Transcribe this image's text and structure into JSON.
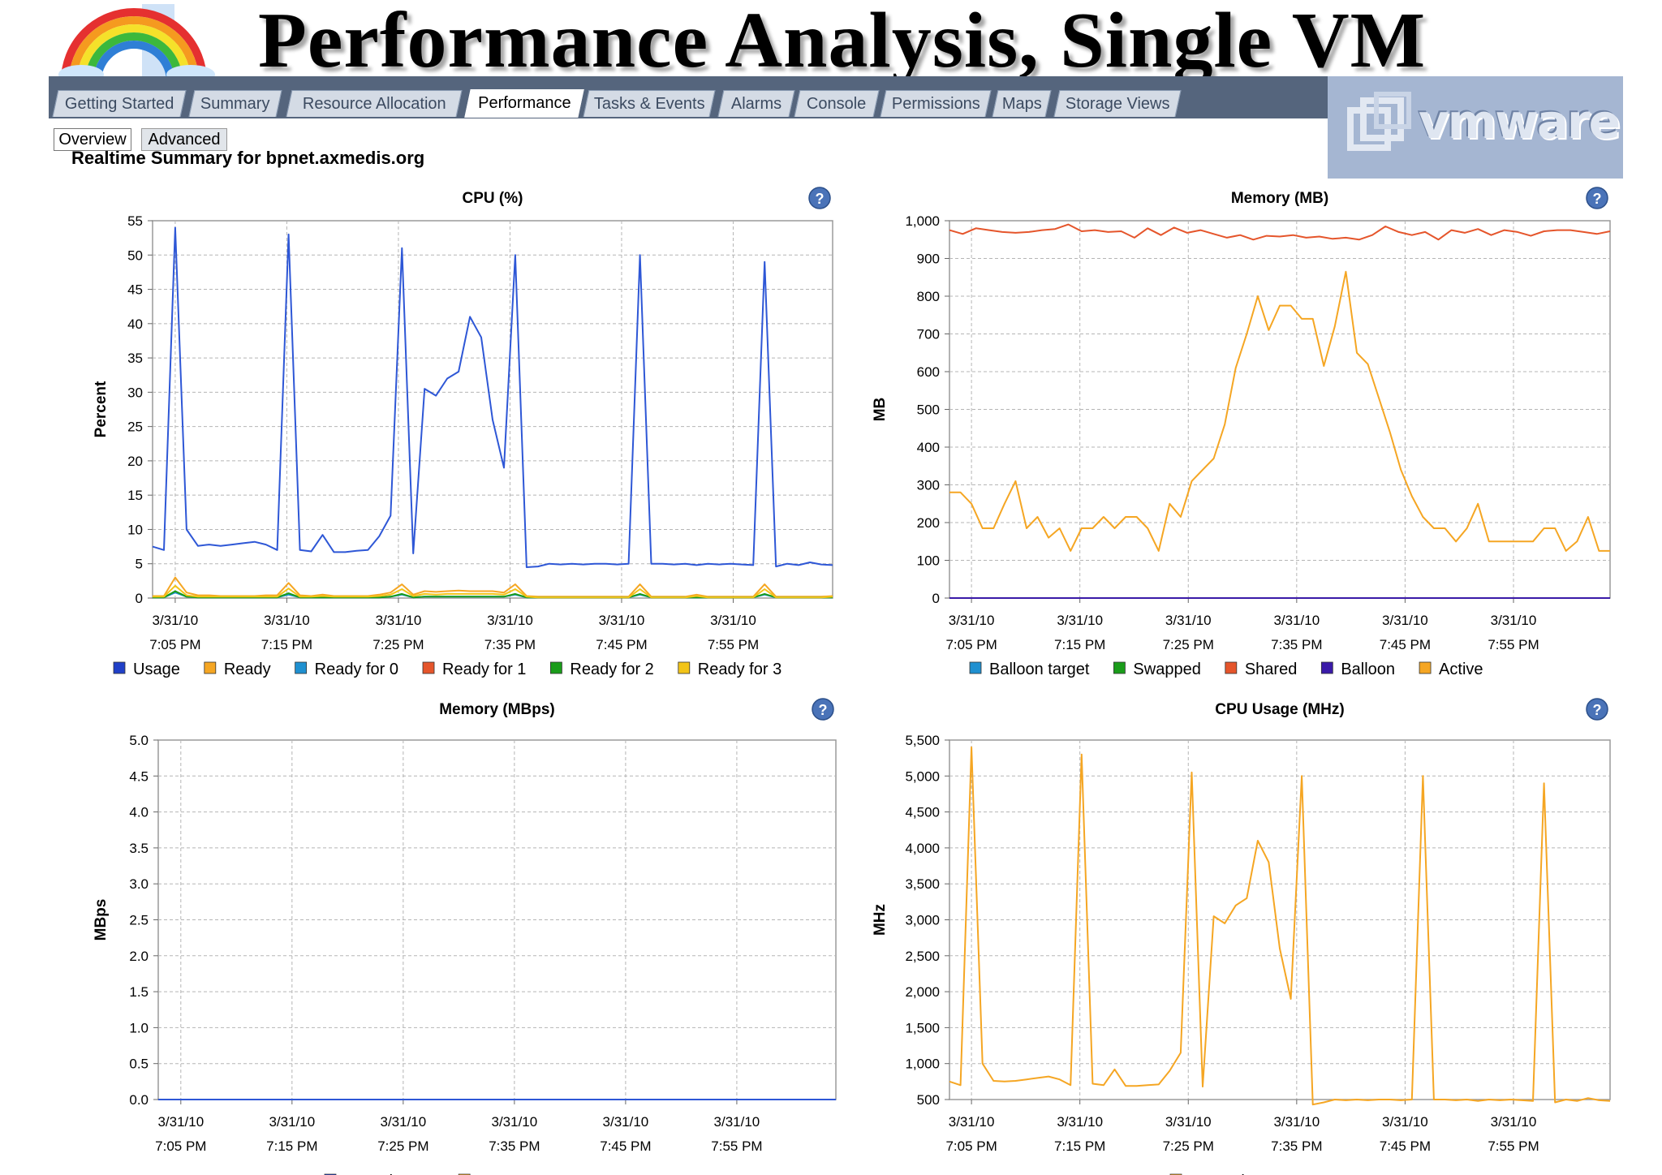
{
  "slide_title": "Performance Analysis, Single VM",
  "tabs": [
    {
      "label": "Getting Started",
      "active": false
    },
    {
      "label": "Summary",
      "active": false
    },
    {
      "label": "Resource Allocation",
      "active": false
    },
    {
      "label": "Performance",
      "active": true
    },
    {
      "label": "Tasks & Events",
      "active": false
    },
    {
      "label": "Alarms",
      "active": false
    },
    {
      "label": "Console",
      "active": false
    },
    {
      "label": "Permissions",
      "active": false
    },
    {
      "label": "Maps",
      "active": false
    },
    {
      "label": "Storage Views",
      "active": false
    }
  ],
  "subtabs": [
    {
      "label": "Overview",
      "selected": true
    },
    {
      "label": "Advanced",
      "selected": false
    }
  ],
  "logo_text": "vmware",
  "summary_title": "Realtime Summary for bpnet.axmedis.org",
  "help_icon": "?",
  "colors": {
    "tabbar": "#55657d",
    "usage_blue": "#2e57d6",
    "orange": "#f5a623",
    "shared_red": "#e5552b",
    "green": "#1a9c1a",
    "yellow": "#f2c418",
    "cyan": "#1f90d0",
    "purple": "#3a1aa8"
  },
  "chart_data": [
    {
      "type": "line",
      "title": "CPU (%)",
      "xlabel": "",
      "ylabel": "Percent",
      "ylim": [
        0,
        55
      ],
      "yticks": [
        "0",
        "5",
        "10",
        "15",
        "20",
        "25",
        "30",
        "35",
        "40",
        "45",
        "50",
        "55"
      ],
      "xticks": [
        [
          "3/31/10",
          "7:05 PM"
        ],
        [
          "3/31/10",
          "7:15 PM"
        ],
        [
          "3/31/10",
          "7:25 PM"
        ],
        [
          "3/31/10",
          "7:35 PM"
        ],
        [
          "3/31/10",
          "7:45 PM"
        ],
        [
          "3/31/10",
          "7:55 PM"
        ]
      ],
      "legend": [
        {
          "name": "Usage",
          "color": "#2040c8"
        },
        {
          "name": "Ready",
          "color": "#f5a623"
        },
        {
          "name": "Ready for 0",
          "color": "#1f90d0"
        },
        {
          "name": "Ready for 1",
          "color": "#e5552b"
        },
        {
          "name": "Ready for 2",
          "color": "#1a9c1a"
        },
        {
          "name": "Ready for 3",
          "color": "#f2c418"
        }
      ],
      "series": [
        {
          "name": "Usage",
          "color": "#2e57d6",
          "values": [
            7.5,
            7,
            54,
            10,
            7.6,
            7.8,
            7.6,
            7.8,
            8,
            8.2,
            7.8,
            7,
            53,
            7,
            6.8,
            9.2,
            6.7,
            6.7,
            6.9,
            7,
            9,
            12,
            51,
            6.5,
            30.5,
            29.5,
            32,
            33,
            41,
            38,
            26,
            19,
            50,
            4.5,
            4.6,
            5,
            4.9,
            5,
            4.9,
            5,
            5,
            4.9,
            5,
            50,
            5,
            5,
            4.9,
            5,
            4.8,
            5,
            4.9,
            5,
            4.9,
            4.8,
            49,
            4.6,
            5,
            4.8,
            5.2,
            4.9,
            4.8
          ]
        },
        {
          "name": "Ready",
          "color": "#f5a623",
          "values": [
            0.3,
            0.3,
            3,
            0.8,
            0.4,
            0.4,
            0.3,
            0.3,
            0.3,
            0.3,
            0.4,
            0.4,
            2.2,
            0.4,
            0.3,
            0.5,
            0.3,
            0.3,
            0.3,
            0.3,
            0.5,
            0.8,
            2,
            0.5,
            1,
            0.9,
            1,
            1.1,
            1,
            1,
            1,
            0.8,
            2,
            0.3,
            0.2,
            0.2,
            0.2,
            0.2,
            0.2,
            0.2,
            0.2,
            0.2,
            0.2,
            2,
            0.2,
            0.2,
            0.2,
            0.2,
            0.5,
            0.2,
            0.2,
            0.2,
            0.2,
            0.2,
            2,
            0.2,
            0.2,
            0.2,
            0.2,
            0.2,
            0.3
          ]
        },
        {
          "name": "Ready for 0",
          "color": "#1f90d0",
          "values": [
            0.1,
            0.1,
            0.8,
            0.2,
            0.1,
            0.1,
            0.1,
            0.1,
            0.1,
            0.1,
            0.1,
            0.1,
            0.5,
            0.1,
            0.1,
            0.1,
            0.1,
            0.1,
            0.1,
            0.1,
            0.1,
            0.2,
            0.5,
            0.1,
            0.2,
            0.2,
            0.2,
            0.2,
            0.2,
            0.2,
            0.2,
            0.2,
            0.5,
            0.1,
            0.1,
            0.1,
            0.1,
            0.1,
            0.1,
            0.1,
            0.1,
            0.1,
            0.1,
            0.5,
            0.1,
            0.1,
            0.1,
            0.1,
            0.1,
            0.1,
            0.1,
            0.1,
            0.1,
            0.1,
            0.5,
            0.1,
            0.1,
            0.1,
            0.1,
            0.1,
            0.1
          ]
        },
        {
          "name": "Ready for 2",
          "color": "#1a9c1a",
          "values": [
            0.1,
            0.1,
            1,
            0.2,
            0.1,
            0.1,
            0.1,
            0.1,
            0.1,
            0.1,
            0.1,
            0.1,
            0.7,
            0.1,
            0.1,
            0.1,
            0.1,
            0.1,
            0.1,
            0.1,
            0.1,
            0.2,
            0.6,
            0.1,
            0.2,
            0.2,
            0.2,
            0.2,
            0.2,
            0.2,
            0.2,
            0.2,
            0.6,
            0.1,
            0.1,
            0.1,
            0.1,
            0.1,
            0.1,
            0.1,
            0.1,
            0.1,
            0.1,
            0.6,
            0.1,
            0.1,
            0.1,
            0.1,
            0.1,
            0.1,
            0.1,
            0.1,
            0.1,
            0.1,
            0.6,
            0.1,
            0.1,
            0.1,
            0.1,
            0.1,
            0.1
          ]
        },
        {
          "name": "Ready for 3",
          "color": "#f2c418",
          "values": [
            0.2,
            0.2,
            1.8,
            0.4,
            0.2,
            0.2,
            0.2,
            0.2,
            0.2,
            0.2,
            0.2,
            0.2,
            1.4,
            0.2,
            0.2,
            0.3,
            0.2,
            0.2,
            0.2,
            0.2,
            0.3,
            0.5,
            1.3,
            0.3,
            0.6,
            0.5,
            0.6,
            0.6,
            0.6,
            0.6,
            0.6,
            0.5,
            1.3,
            0.2,
            0.1,
            0.1,
            0.1,
            0.1,
            0.1,
            0.1,
            0.1,
            0.1,
            0.1,
            1.3,
            0.1,
            0.1,
            0.1,
            0.1,
            0.3,
            0.1,
            0.1,
            0.1,
            0.1,
            0.1,
            1.3,
            0.1,
            0.1,
            0.1,
            0.1,
            0.1,
            0.2
          ]
        }
      ]
    },
    {
      "type": "line",
      "title": "Memory (MB)",
      "xlabel": "",
      "ylabel": "MB",
      "ylim": [
        0,
        1000
      ],
      "yticks": [
        "0",
        "100",
        "200",
        "300",
        "400",
        "500",
        "600",
        "700",
        "800",
        "900",
        "1,000"
      ],
      "xticks": [
        [
          "3/31/10",
          "7:05 PM"
        ],
        [
          "3/31/10",
          "7:15 PM"
        ],
        [
          "3/31/10",
          "7:25 PM"
        ],
        [
          "3/31/10",
          "7:35 PM"
        ],
        [
          "3/31/10",
          "7:45 PM"
        ],
        [
          "3/31/10",
          "7:55 PM"
        ]
      ],
      "legend": [
        {
          "name": "Balloon target",
          "color": "#1f90d0"
        },
        {
          "name": "Swapped",
          "color": "#1a9c1a"
        },
        {
          "name": "Shared",
          "color": "#e5552b"
        },
        {
          "name": "Balloon",
          "color": "#3a1aa8"
        },
        {
          "name": "Active",
          "color": "#f5a623"
        }
      ],
      "series": [
        {
          "name": "Shared",
          "color": "#e5552b",
          "values": [
            975,
            965,
            980,
            975,
            970,
            968,
            970,
            975,
            978,
            990,
            972,
            975,
            970,
            972,
            955,
            980,
            962,
            982,
            968,
            975,
            965,
            955,
            962,
            950,
            960,
            958,
            962,
            955,
            958,
            952,
            955,
            950,
            962,
            985,
            970,
            962,
            970,
            950,
            975,
            968,
            978,
            962,
            975,
            970,
            960,
            972,
            975,
            975,
            970,
            965,
            972
          ]
        },
        {
          "name": "Active",
          "color": "#f5a623",
          "values": [
            280,
            280,
            250,
            185,
            185,
            250,
            310,
            185,
            215,
            160,
            185,
            125,
            185,
            185,
            215,
            185,
            215,
            215,
            185,
            125,
            250,
            215,
            310,
            340,
            370,
            460,
            610,
            700,
            800,
            710,
            775,
            775,
            740,
            740,
            615,
            720,
            865,
            650,
            620,
            530,
            440,
            340,
            270,
            215,
            185,
            185,
            150,
            185,
            250,
            150,
            150,
            150,
            150,
            150,
            185,
            185,
            125,
            150,
            215,
            125,
            125
          ]
        },
        {
          "name": "Balloon target",
          "color": "#1f90d0",
          "values": [
            0,
            0
          ]
        },
        {
          "name": "Swapped",
          "color": "#1a9c1a",
          "values": [
            0,
            0
          ]
        },
        {
          "name": "Balloon",
          "color": "#3a1aa8",
          "values": [
            0,
            0
          ]
        }
      ]
    },
    {
      "type": "line",
      "title": "Memory (MBps)",
      "xlabel": "",
      "ylabel": "MBps",
      "ylim": [
        0,
        5
      ],
      "yticks": [
        "0.0",
        "0.5",
        "1.0",
        "1.5",
        "2.0",
        "2.5",
        "3.0",
        "3.5",
        "4.0",
        "4.5",
        "5.0"
      ],
      "xticks": [
        [
          "3/31/10",
          "7:05 PM"
        ],
        [
          "3/31/10",
          "7:15 PM"
        ],
        [
          "3/31/10",
          "7:25 PM"
        ],
        [
          "3/31/10",
          "7:35 PM"
        ],
        [
          "3/31/10",
          "7:45 PM"
        ],
        [
          "3/31/10",
          "7:55 PM"
        ]
      ],
      "legend": [
        {
          "name": "Swap in rate",
          "color": "#1f3fc4"
        },
        {
          "name": "Swap out rate",
          "color": "#f5a623"
        }
      ],
      "series": [
        {
          "name": "Swap out rate",
          "color": "#f5a623",
          "values": [
            0,
            0
          ]
        },
        {
          "name": "Swap in rate",
          "color": "#2e57d6",
          "values": [
            0,
            0
          ]
        }
      ]
    },
    {
      "type": "line",
      "title": "CPU Usage (MHz)",
      "xlabel": "",
      "ylabel": "MHz",
      "ylim": [
        500,
        5500
      ],
      "yticks": [
        "500",
        "1,000",
        "1,500",
        "2,000",
        "2,500",
        "3,000",
        "3,500",
        "4,000",
        "4,500",
        "5,000",
        "5,500"
      ],
      "xticks": [
        [
          "3/31/10",
          "7:05 PM"
        ],
        [
          "3/31/10",
          "7:15 PM"
        ],
        [
          "3/31/10",
          "7:25 PM"
        ],
        [
          "3/31/10",
          "7:35 PM"
        ],
        [
          "3/31/10",
          "7:45 PM"
        ],
        [
          "3/31/10",
          "7:55 PM"
        ]
      ],
      "legend": [
        {
          "name": "Usage in MHz",
          "color": "#f5a623"
        }
      ],
      "series": [
        {
          "name": "Usage in MHz",
          "color": "#f5a623",
          "values": [
            750,
            700,
            5400,
            1000,
            760,
            750,
            760,
            780,
            800,
            820,
            780,
            700,
            5300,
            720,
            700,
            920,
            690,
            690,
            700,
            710,
            900,
            1150,
            5050,
            680,
            3050,
            2950,
            3200,
            3300,
            4100,
            3800,
            2600,
            1900,
            5000,
            430,
            460,
            500,
            490,
            500,
            490,
            500,
            500,
            490,
            500,
            5000,
            500,
            500,
            490,
            500,
            480,
            500,
            490,
            500,
            490,
            480,
            4900,
            460,
            500,
            480,
            520,
            490,
            480
          ]
        }
      ]
    }
  ]
}
